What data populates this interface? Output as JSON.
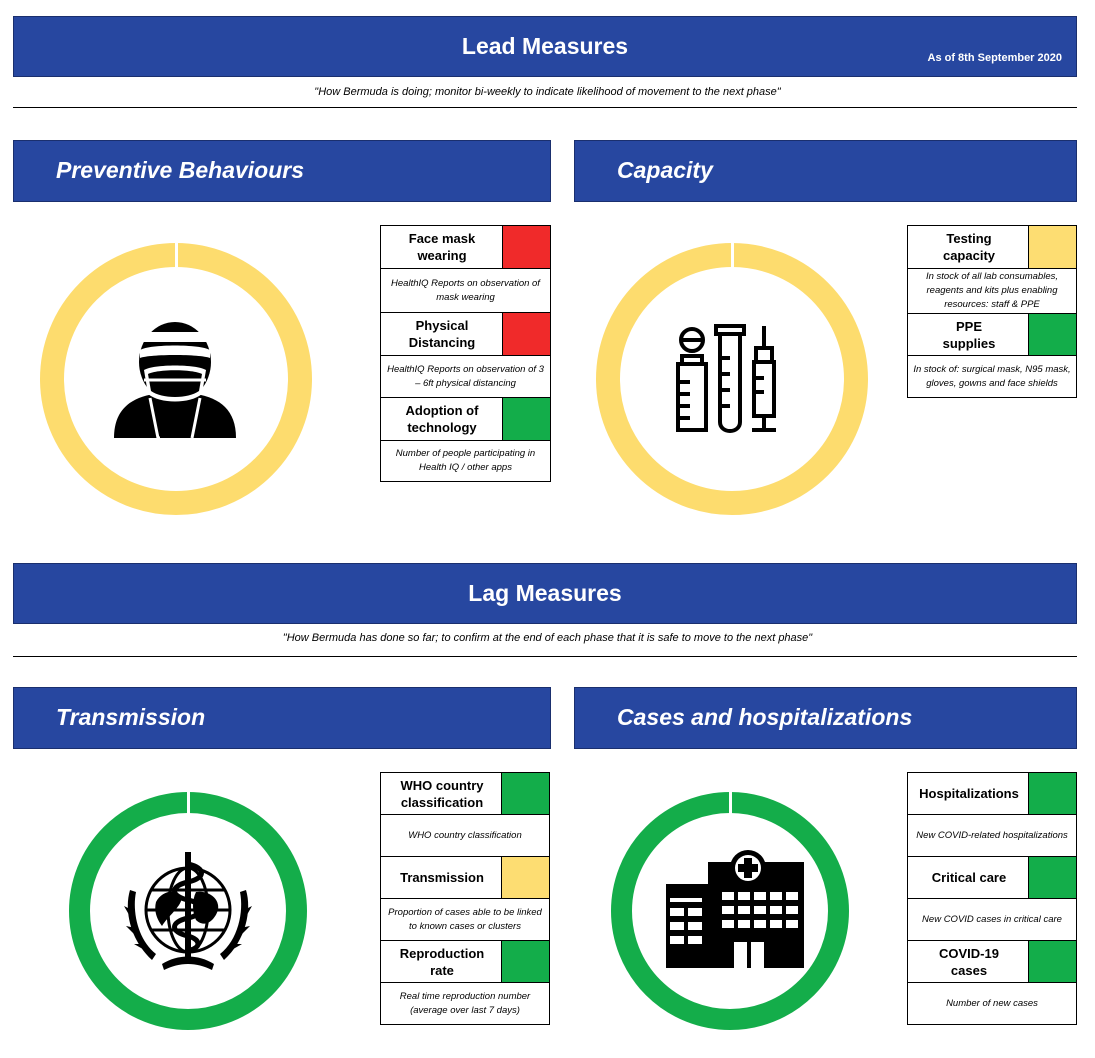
{
  "lead": {
    "title": "Lead Measures",
    "as_of": "As of 8th September 2020",
    "quote": "\"How Bermuda is doing; monitor bi-weekly to indicate likelihood of movement to the next phase\""
  },
  "lag": {
    "title": "Lag Measures",
    "quote": "\"How Bermuda has done so far; to confirm at the end of each phase that it is safe to move to the next phase\""
  },
  "colors": {
    "banner": "#2747a0",
    "red": "#f02a2a",
    "yellow": "#fddd72",
    "green": "#13ad4a",
    "ring_yellow": "#fddc6e",
    "ring_green": "#14ad4a"
  },
  "sections": {
    "preventive": {
      "title": "Preventive Behaviours",
      "icon": "masked-person-icon",
      "ring_status": "yellow",
      "indicators": [
        {
          "label": "Face mask wearing",
          "status": "red",
          "description": "HealthIQ Reports on observation of mask wearing"
        },
        {
          "label": "Physical Distancing",
          "status": "red",
          "description": "HealthIQ Reports on observation of 3 – 6ft physical distancing"
        },
        {
          "label": "Adoption of technology",
          "status": "green",
          "description": "Number of people participating in Health IQ / other apps"
        }
      ]
    },
    "capacity": {
      "title": "Capacity",
      "icon": "lab-vials-syringe-icon",
      "ring_status": "yellow",
      "indicators": [
        {
          "label": "Testing capacity",
          "status": "yellow",
          "description": "In stock of all lab consumables, reagents and kits plus enabling resources: staff & PPE"
        },
        {
          "label": "PPE supplies",
          "status": "green",
          "description": "In stock of: surgical mask, N95 mask, gloves, gowns and face shields"
        }
      ]
    },
    "transmission": {
      "title": "Transmission",
      "icon": "who-emblem-icon",
      "ring_status": "green",
      "indicators": [
        {
          "label": "WHO country classification",
          "status": "green",
          "description": "WHO country classification"
        },
        {
          "label": "Transmission",
          "status": "yellow",
          "description": "Proportion of cases able to be linked to known cases or clusters"
        },
        {
          "label": "Reproduction rate",
          "status": "green",
          "description": "Real time reproduction number (average over last 7 days)"
        }
      ]
    },
    "cases": {
      "title": "Cases and hospitalizations",
      "icon": "hospital-building-icon",
      "ring_status": "green",
      "indicators": [
        {
          "label": "Hospitalizations",
          "status": "green",
          "description": "New COVID-related hospitalizations"
        },
        {
          "label": "Critical care",
          "status": "green",
          "description": "New COVID cases in critical care"
        },
        {
          "label": "COVID-19 cases",
          "status": "green",
          "description": "Number of new cases"
        }
      ]
    }
  }
}
